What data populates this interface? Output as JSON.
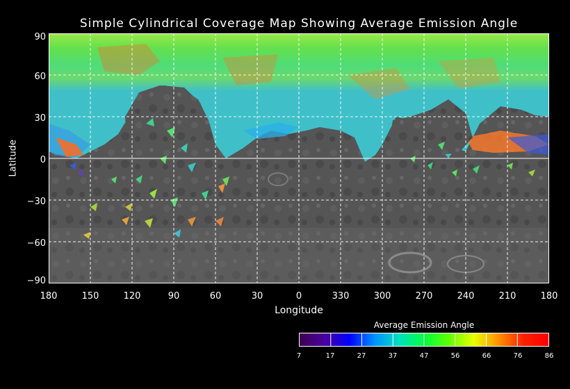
{
  "title": "Simple Cylindrical Coverage Map Showing Average Emission Angle",
  "y_axis": {
    "label": "Latitude",
    "ticks": [
      "90",
      "60",
      "30",
      "0",
      "−30",
      "−60",
      "−90"
    ]
  },
  "x_axis": {
    "label": "Longitude",
    "ticks": [
      "180",
      "150",
      "120",
      "90",
      "60",
      "30",
      "0",
      "330",
      "300",
      "270",
      "240",
      "210",
      "180"
    ]
  },
  "colorbar": {
    "title": "Average Emission Angle",
    "ticks": [
      "7",
      "17",
      "27",
      "37",
      "47",
      "56",
      "66",
      "76",
      "86"
    ],
    "colors": [
      "#3d0050",
      "#4b00a0",
      "#0000ff",
      "#0090ff",
      "#00e0c0",
      "#00ff40",
      "#60ff00",
      "#e8ff00",
      "#ff9000",
      "#ff2000",
      "#ff0000"
    ]
  },
  "map": {
    "grid": true,
    "coverage_note_colors": {
      "basemap_dark": "#4a4a4a",
      "basemap_light": "#7a7a7a"
    }
  }
}
